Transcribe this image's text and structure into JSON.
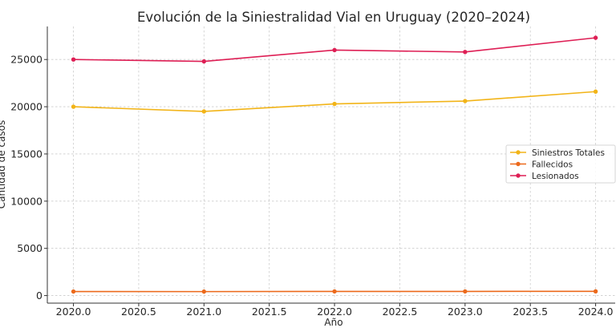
{
  "chart_data": {
    "type": "line",
    "title": "Evolución de la Siniestralidad Vial en Uruguay (2020–2024)",
    "xlabel": "Año",
    "ylabel": "Cantidad de casos",
    "x": [
      2020.0,
      2021.0,
      2022.0,
      2023.0,
      2024.0
    ],
    "xlim": [
      2019.8,
      2024.15
    ],
    "ylim": [
      -800,
      28500
    ],
    "xticks": [
      2020.0,
      2020.5,
      2021.0,
      2021.5,
      2022.0,
      2022.5,
      2023.0,
      2023.5,
      2024.0
    ],
    "xtick_labels": [
      "2020.0",
      "2020.5",
      "2021.0",
      "2021.5",
      "2022.0",
      "2022.5",
      "2023.0",
      "2023.5",
      "2024.0"
    ],
    "yticks": [
      0,
      5000,
      10000,
      15000,
      20000,
      25000
    ],
    "ytick_labels": [
      "0",
      "5000",
      "10000",
      "15000",
      "20000",
      "25000"
    ],
    "grid": true,
    "legend_position": "center-right",
    "series": [
      {
        "name": "Siniestros Totales",
        "color": "#F2B418",
        "values": [
          20000,
          19500,
          20300,
          20600,
          21600
        ]
      },
      {
        "name": "Fallecidos",
        "color": "#EC6A1C",
        "values": [
          430,
          420,
          440,
          440,
          450
        ]
      },
      {
        "name": "Lesionados",
        "color": "#DE1F55",
        "values": [
          25000,
          24800,
          26000,
          25800,
          27300
        ]
      }
    ]
  }
}
